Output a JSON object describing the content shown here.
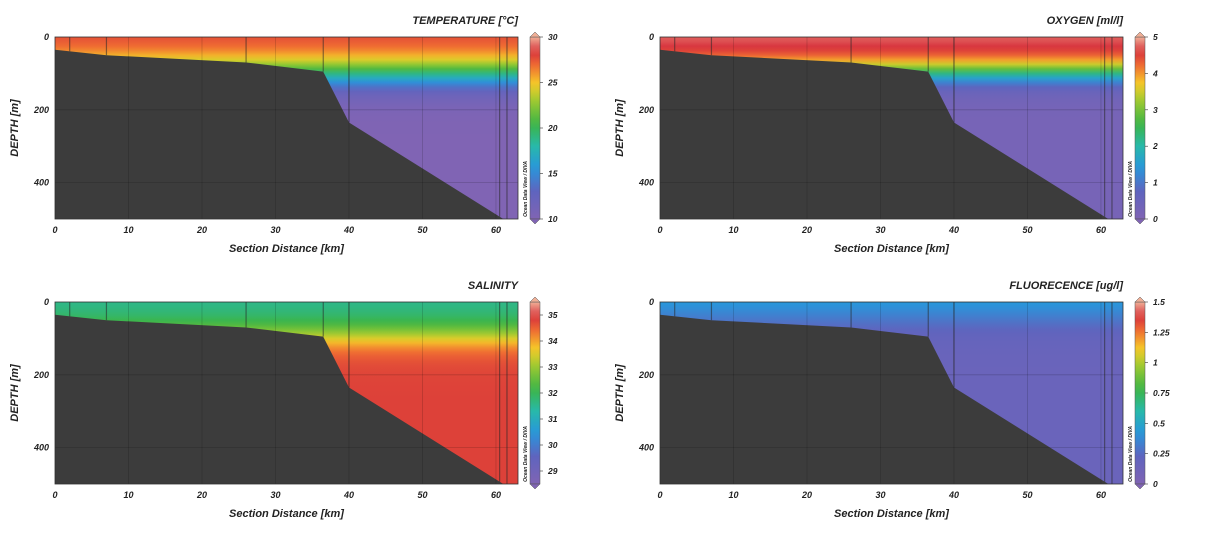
{
  "watermark": "Ocean Data View / DIVA",
  "chart_data": [
    {
      "type": "heatmap",
      "title": "TEMPERATURE [°C]",
      "xlabel": "Section Distance [km]",
      "ylabel": "DEPTH [m]",
      "xlim": [
        0,
        63
      ],
      "ylim": [
        0,
        500
      ],
      "x_ticks": [
        "0",
        "10",
        "20",
        "30",
        "40",
        "50",
        "60"
      ],
      "y_ticks": [
        "0",
        "200",
        "400"
      ],
      "colorbar": {
        "min": 10,
        "max": 30,
        "ticks": [
          "30",
          "25",
          "20",
          "15",
          "10"
        ]
      },
      "field": {
        "surface": 28,
        "deep": 10,
        "thermocline_depth": 100,
        "spread": 28
      },
      "stations_km": [
        2,
        7,
        26,
        36.5,
        40,
        60.5,
        61.5
      ],
      "bathymetry": [
        [
          0,
          35
        ],
        [
          7,
          50
        ],
        [
          26,
          70
        ],
        [
          36.5,
          95
        ],
        [
          40,
          235
        ],
        [
          61,
          500
        ]
      ]
    },
    {
      "type": "heatmap",
      "title": "OXYGEN [ml/l]",
      "xlabel": "Section Distance [km]",
      "ylabel": "DEPTH [m]",
      "xlim": [
        0,
        63
      ],
      "ylim": [
        0,
        500
      ],
      "x_ticks": [
        "0",
        "10",
        "20",
        "30",
        "40",
        "50",
        "60"
      ],
      "y_ticks": [
        "0",
        "200",
        "400"
      ],
      "colorbar": {
        "min": 0,
        "max": 5,
        "ticks": [
          "5",
          "4",
          "3",
          "2",
          "1",
          "0"
        ]
      },
      "field": {
        "surface": 4.8,
        "deep": 0.2,
        "thermocline_depth": 95,
        "spread": 22
      },
      "stations_km": [
        2,
        7,
        26,
        36.5,
        40,
        60.5,
        61.5
      ],
      "bathymetry": [
        [
          0,
          35
        ],
        [
          7,
          50
        ],
        [
          26,
          70
        ],
        [
          36.5,
          95
        ],
        [
          40,
          235
        ],
        [
          61,
          500
        ]
      ]
    },
    {
      "type": "heatmap",
      "title": "SALINITY",
      "xlabel": "Section Distance [km]",
      "ylabel": "DEPTH [m]",
      "xlim": [
        0,
        63
      ],
      "ylim": [
        0,
        500
      ],
      "x_ticks": [
        "0",
        "10",
        "20",
        "30",
        "40",
        "50",
        "60"
      ],
      "y_ticks": [
        "0",
        "200",
        "400"
      ],
      "colorbar": {
        "min": 28.5,
        "max": 35.5,
        "ticks": [
          "35",
          "34",
          "33",
          "32",
          "31",
          "30",
          "29"
        ]
      },
      "field": {
        "surface": 31.5,
        "deep": 34.8,
        "thermocline_depth": 90,
        "spread": 25
      },
      "stations_km": [
        2,
        7,
        26,
        36.5,
        40,
        60.5,
        61.5
      ],
      "bathymetry": [
        [
          0,
          35
        ],
        [
          7,
          50
        ],
        [
          26,
          70
        ],
        [
          36.5,
          95
        ],
        [
          40,
          235
        ],
        [
          61,
          500
        ]
      ]
    },
    {
      "type": "heatmap",
      "title": "FLUORECENCE [ug/l]",
      "xlabel": "Section Distance [km]",
      "ylabel": "DEPTH [m]",
      "xlim": [
        0,
        63
      ],
      "ylim": [
        0,
        500
      ],
      "x_ticks": [
        "0",
        "10",
        "20",
        "30",
        "40",
        "50",
        "60"
      ],
      "y_ticks": [
        "0",
        "200",
        "400"
      ],
      "colorbar": {
        "min": 0,
        "max": 1.5,
        "ticks": [
          "1.5",
          "1.25",
          "1",
          "0.75",
          "0.5",
          "0.25",
          "0"
        ]
      },
      "field": {
        "surface": 0.5,
        "deep": 0.15,
        "thermocline_depth": 40,
        "spread": 30
      },
      "stations_km": [
        2,
        7,
        26,
        36.5,
        40,
        60.5,
        61.5
      ],
      "bathymetry": [
        [
          0,
          35
        ],
        [
          7,
          50
        ],
        [
          26,
          70
        ],
        [
          36.5,
          95
        ],
        [
          40,
          235
        ],
        [
          61,
          500
        ]
      ]
    }
  ]
}
